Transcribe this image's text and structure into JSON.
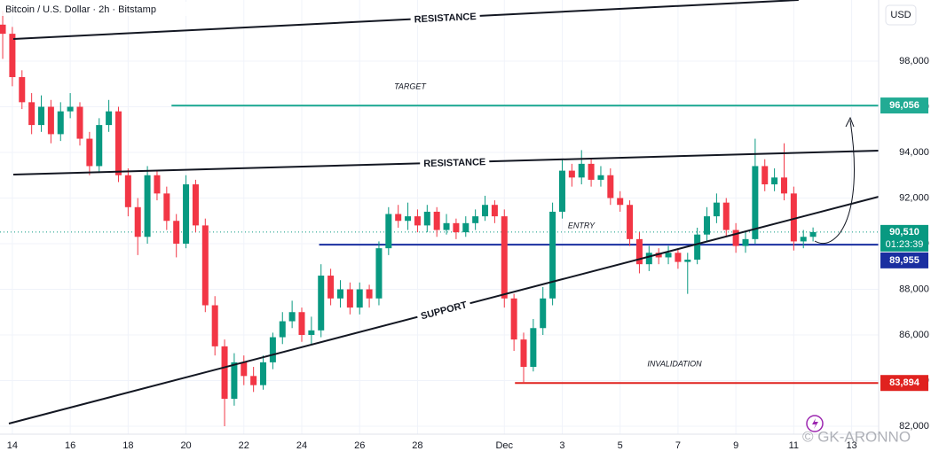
{
  "chart_data": {
    "type": "candlestick",
    "title": "Bitcoin / U.S. Dollar · 2h · Bitstamp",
    "currency": "USD",
    "watermark": "© GK-ARONNO",
    "up_color": "#089981",
    "down_color": "#f23645",
    "categories": [
      null,
      null,
      null,
      null,
      null,
      null,
      null,
      null,
      null,
      null,
      null,
      null,
      null,
      null,
      null,
      null,
      null,
      null,
      null,
      null,
      null,
      null,
      null,
      null,
      null,
      null,
      null,
      null,
      null,
      null,
      null,
      null,
      null,
      null,
      null,
      null,
      null,
      null,
      null,
      null,
      null,
      null,
      null,
      null,
      null,
      null,
      null,
      null,
      null,
      null,
      null,
      null,
      null,
      null,
      null,
      null,
      null,
      null,
      null,
      null,
      null,
      null,
      null,
      null,
      null,
      null,
      null,
      null,
      null,
      null,
      null,
      null,
      null,
      null,
      null,
      null,
      null,
      null,
      null,
      null,
      null,
      null,
      null,
      null,
      null
    ],
    "open": [
      99600,
      99200,
      97300,
      96200,
      95200,
      96000,
      94800,
      95800,
      96000,
      94600,
      93400,
      95200,
      95800,
      93000,
      91600,
      90300,
      93000,
      92200,
      91000,
      90000,
      92600,
      90800,
      87300,
      85500,
      83200,
      84800,
      84200,
      83800,
      84800,
      85900,
      86600,
      87000,
      86000,
      86200,
      88600,
      87600,
      88000,
      87200,
      88000,
      87600,
      89800,
      91300,
      91000,
      91200,
      90800,
      91400,
      90600,
      90900,
      90500,
      90900,
      91200,
      91700,
      91200,
      87600,
      85800,
      84600,
      86300,
      87600,
      91400,
      93200,
      92900,
      93500,
      92800,
      93000,
      92000,
      91700,
      90200,
      89100,
      89600,
      89400,
      89600,
      89200,
      89300,
      90400,
      91200,
      91800,
      90600,
      89900,
      90200,
      93400,
      92600,
      92900,
      92200,
      90100,
      90300
    ],
    "high": [
      100200,
      99500,
      97600,
      96600,
      96500,
      96300,
      96200,
      96600,
      96200,
      94900,
      95500,
      96300,
      96000,
      93300,
      92000,
      93400,
      93200,
      92500,
      91300,
      93000,
      92800,
      91100,
      87700,
      85800,
      85200,
      85100,
      84600,
      85100,
      86100,
      87000,
      87500,
      87200,
      86800,
      89100,
      88900,
      88400,
      88300,
      88300,
      88200,
      90100,
      91600,
      91700,
      91800,
      91500,
      91700,
      91600,
      91300,
      91100,
      91200,
      91500,
      92100,
      91900,
      91500,
      87800,
      86100,
      86700,
      88100,
      91800,
      93700,
      93500,
      94100,
      93700,
      93400,
      93300,
      92300,
      91900,
      90500,
      89900,
      89800,
      89900,
      89800,
      89600,
      90700,
      91600,
      92200,
      92000,
      90900,
      90500,
      94600,
      93700,
      93300,
      94400,
      92500,
      90600,
      90710
    ],
    "low": [
      98100,
      96900,
      95900,
      94800,
      94900,
      94400,
      94500,
      95500,
      94300,
      93000,
      93100,
      94900,
      92700,
      91200,
      89500,
      90000,
      91900,
      90600,
      89400,
      89800,
      90500,
      87000,
      85100,
      82000,
      82900,
      83800,
      83500,
      83600,
      84500,
      85600,
      86300,
      85700,
      85600,
      85900,
      87300,
      87200,
      86900,
      86900,
      87200,
      87300,
      89500,
      90700,
      90600,
      90500,
      90500,
      90300,
      90400,
      90200,
      90300,
      90600,
      91000,
      90900,
      87200,
      85300,
      83894,
      84400,
      86000,
      87300,
      91100,
      92500,
      92600,
      92500,
      92500,
      91700,
      91400,
      89900,
      88700,
      88800,
      89100,
      89100,
      88900,
      87800,
      89100,
      90100,
      90900,
      90300,
      89600,
      89600,
      90000,
      92300,
      92300,
      91900,
      89700,
      89800,
      90100
    ],
    "close": [
      99200,
      97300,
      96200,
      95200,
      96000,
      94800,
      95800,
      96000,
      94600,
      93400,
      95200,
      95800,
      93000,
      91600,
      90300,
      93000,
      92200,
      91000,
      90000,
      92600,
      90800,
      87300,
      85500,
      83200,
      84800,
      84200,
      83800,
      84800,
      85900,
      86600,
      87000,
      86000,
      86200,
      88600,
      87600,
      88000,
      87200,
      88000,
      87600,
      89800,
      91300,
      91000,
      91200,
      90800,
      91400,
      90600,
      90900,
      90500,
      90900,
      91200,
      91700,
      91200,
      87600,
      85800,
      84600,
      86300,
      87600,
      91400,
      93200,
      92900,
      93500,
      92800,
      93000,
      92000,
      91700,
      90200,
      89100,
      89600,
      89400,
      89600,
      89200,
      89300,
      90400,
      91200,
      91800,
      90600,
      89900,
      90200,
      93400,
      92600,
      92900,
      92200,
      90100,
      90300,
      90510
    ],
    "xlim": [
      -0.28,
      90.8
    ],
    "xticks": [
      {
        "value": 1,
        "label": "14"
      },
      {
        "value": 7,
        "label": "16"
      },
      {
        "value": 13,
        "label": "18"
      },
      {
        "value": 19,
        "label": "20"
      },
      {
        "value": 25,
        "label": "22"
      },
      {
        "value": 31,
        "label": "24"
      },
      {
        "value": 37,
        "label": "26"
      },
      {
        "value": 43,
        "label": "28"
      },
      {
        "value": 52,
        "label": "Dec"
      },
      {
        "value": 58,
        "label": "3"
      },
      {
        "value": 64,
        "label": "5"
      },
      {
        "value": 70,
        "label": "7"
      },
      {
        "value": 76,
        "label": "9"
      },
      {
        "value": 82,
        "label": "11"
      },
      {
        "value": 88,
        "label": "13"
      }
    ],
    "ylim": [
      81650,
      100680
    ],
    "yticks": [
      {
        "value": 82000,
        "label": "82,000"
      },
      {
        "value": 84000,
        "label": "84,000"
      },
      {
        "value": 86000,
        "label": "86,000"
      },
      {
        "value": 88000,
        "label": "88,000"
      },
      {
        "value": 90000,
        "label": "90,000"
      },
      {
        "value": 92000,
        "label": "92,000"
      },
      {
        "value": 94000,
        "label": "94,000"
      },
      {
        "value": 96000,
        "label": "96,000"
      },
      {
        "value": 98000,
        "label": "98,000"
      }
    ],
    "trendlines": [
      {
        "label": "RESISTANCE",
        "points": [
          [
            1.1,
            98971
          ],
          [
            82.5,
            100680
          ]
        ]
      },
      {
        "label": "RESISTANCE",
        "points": [
          [
            1.1,
            93029
          ],
          [
            90.8,
            94078
          ]
        ]
      },
      {
        "label": "SUPPORT",
        "points": [
          [
            0.64,
            82117
          ],
          [
            90.8,
            92058
          ]
        ]
      }
    ],
    "levels": [
      {
        "note": "TARGET",
        "value": 96056,
        "label": "96,056",
        "color": "#22ab94",
        "from": 17.5
      },
      {
        "note": "ENTRY",
        "value": 89955,
        "label": "89,955",
        "color": "#1a2fa0",
        "from": 32.8
      },
      {
        "note": "INVALIDATION",
        "value": 83894,
        "label": "83,894",
        "color": "#e0221f",
        "from": 53.1
      }
    ],
    "last_price": {
      "value": 90510,
      "label": "90,510",
      "countdown": "01:23:39",
      "color": "#089981"
    }
  }
}
